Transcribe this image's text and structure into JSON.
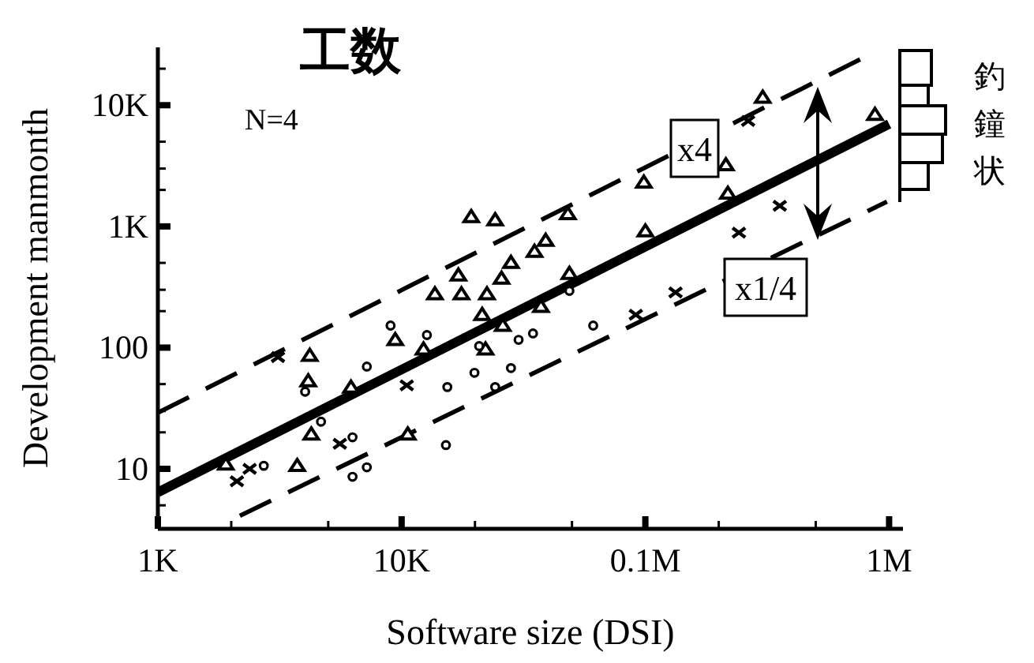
{
  "chart_data": {
    "type": "scatter",
    "title": "工数",
    "xlabel": "Software size (DSI)",
    "ylabel": "Development manmonth",
    "log": "xy",
    "xlim": [
      1000,
      1140000
    ],
    "ylim": [
      3.2,
      30000
    ],
    "xticks": [
      {
        "value": 1000,
        "label": "1K"
      },
      {
        "value": 2000,
        "label": null
      },
      {
        "value": 5000,
        "label": null
      },
      {
        "value": 10000,
        "label": "10K"
      },
      {
        "value": 20000,
        "label": null
      },
      {
        "value": 50000,
        "label": null
      },
      {
        "value": 100000,
        "label": "0.1M"
      },
      {
        "value": 200000,
        "label": null
      },
      {
        "value": 500000,
        "label": null
      },
      {
        "value": 1000000,
        "label": "1M"
      }
    ],
    "yticks": [
      {
        "value": 5,
        "label": null
      },
      {
        "value": 10,
        "label": "10"
      },
      {
        "value": 20,
        "label": null
      },
      {
        "value": 30,
        "label": null
      },
      {
        "value": 50,
        "label": null
      },
      {
        "value": 100,
        "label": "100"
      },
      {
        "value": 200,
        "label": null
      },
      {
        "value": 300,
        "label": null
      },
      {
        "value": 500,
        "label": null
      },
      {
        "value": 1000,
        "label": "1K"
      },
      {
        "value": 2000,
        "label": null
      },
      {
        "value": 3000,
        "label": null
      },
      {
        "value": 5000,
        "label": null
      },
      {
        "value": 10000,
        "label": "10K"
      },
      {
        "value": 20000,
        "label": null
      }
    ],
    "series": [
      {
        "type": "scatter",
        "marker": "triangle",
        "color": "#000000",
        "x": [
          19300,
          24200,
          35100,
          17100,
          25700,
          13700,
          17600,
          22400,
          21400,
          26000,
          9420,
          12300,
          22100,
          4200,
          4140,
          6200,
          4260,
          1900,
          3730,
          10600,
          303000,
          875000,
          214000,
          218000,
          100000,
          48800,
          28100,
          39000,
          37300,
          98600,
          48100
        ],
        "values": [
          1200,
          1130,
          620,
          395,
          372,
          277,
          277,
          277,
          187,
          152,
          116,
          97,
          97,
          86,
          53,
          47,
          19.3,
          10.9,
          10.6,
          19.3,
          11600,
          8360,
          3210,
          1870,
          914,
          408,
          502,
          764,
          218,
          2310,
          1270
        ]
      },
      {
        "type": "scatter",
        "marker": "cross",
        "color": "#000000",
        "x": [
          3110,
          10500,
          5580,
          2110,
          2380,
          264000,
          356000,
          242000,
          133000,
          91400
        ],
        "values": [
          83.6,
          48.8,
          16.1,
          7.9,
          10,
          7410,
          1480,
          887,
          285,
          187
        ]
      },
      {
        "type": "scatter",
        "marker": "circle",
        "color": "#000000",
        "x": [
          9010,
          12700,
          4020,
          7200,
          15400,
          24200,
          19900,
          28100,
          4670,
          6290,
          2720,
          7200,
          6290,
          15200,
          30200,
          34600,
          20800,
          61100,
          48800
        ],
        "values": [
          152,
          127,
          43.3,
          69.8,
          47.3,
          47.3,
          62,
          67.8,
          24.5,
          18.2,
          10.6,
          10.3,
          8.6,
          15.7,
          116,
          131,
          103,
          152,
          294
        ]
      },
      {
        "type": "line",
        "line_style": "solid",
        "color": "#000000",
        "x": [
          1000,
          1000000
        ],
        "values": [
          6.4,
          7000
        ]
      },
      {
        "type": "line",
        "line_style": "dashed",
        "color": "#000000",
        "x": [
          1000,
          780000
        ],
        "values": [
          29,
          24500
        ]
      },
      {
        "type": "line",
        "line_style": "dashed",
        "color": "#000000",
        "x": [
          2170,
          980000
        ],
        "values": [
          4.1,
          1600
        ]
      }
    ],
    "annotations": [
      "N=4",
      "x4",
      "x1/4",
      "釣鐘状"
    ]
  }
}
